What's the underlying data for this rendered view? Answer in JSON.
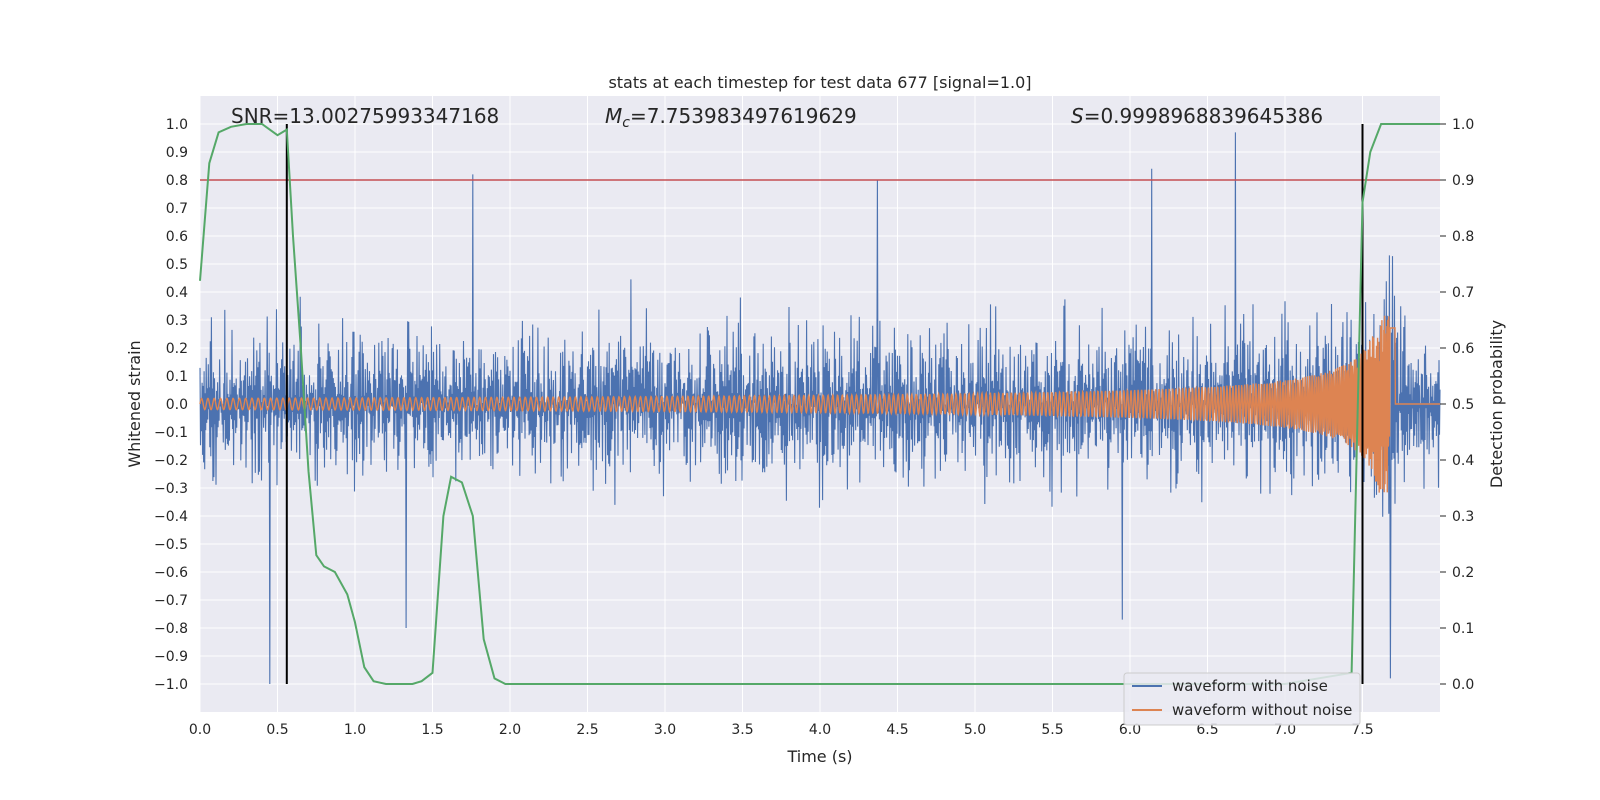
{
  "chart_data": {
    "type": "line",
    "title": "stats at each timestep for test data 677 [signal=1.0]",
    "xlabel": "Time (s)",
    "ylabel": "Whitened strain",
    "y2label": "Detection probability",
    "xlim": [
      0.0,
      8.0
    ],
    "ylim": [
      -1.1,
      1.1
    ],
    "y2lim": [
      -0.05,
      1.05
    ],
    "xticks": [
      "0.0",
      "0.5",
      "1.0",
      "1.5",
      "2.0",
      "2.5",
      "3.0",
      "3.5",
      "4.0",
      "4.5",
      "5.0",
      "5.5",
      "6.0",
      "6.5",
      "7.0",
      "7.5"
    ],
    "yticks": [
      "−1.0",
      "−0.9",
      "−0.8",
      "−0.7",
      "−0.6",
      "−0.5",
      "−0.4",
      "−0.3",
      "−0.2",
      "−0.1",
      "0.0",
      "0.1",
      "0.2",
      "0.3",
      "0.4",
      "0.5",
      "0.6",
      "0.7",
      "0.8",
      "0.9",
      "1.0"
    ],
    "y2ticks": [
      "0.0",
      "0.1",
      "0.2",
      "0.3",
      "0.4",
      "0.5",
      "0.6",
      "0.7",
      "0.8",
      "0.9",
      "1.0"
    ],
    "annotations": {
      "snr": "SNR=13.00275993347168",
      "mc_symbol": "M",
      "mc_sub": "c",
      "mc_value": "=7.753983497619629",
      "s_symbol": "S",
      "s_value": "=0.9998968839645386"
    },
    "threshold": {
      "value": 0.9,
      "axis": "y2",
      "color": "#c44e52"
    },
    "vlines": [
      0.56,
      7.5
    ],
    "colors": {
      "noisy": "#4c72b0",
      "clean": "#dd8452",
      "probability": "#55a868",
      "vline": "#000000",
      "background": "#eaeaf2",
      "grid": "#ffffff"
    },
    "series": [
      {
        "name": "waveform with noise",
        "description": "whitened strain, noise-dominated, amplitude about ±0.4 with spikes up to 1.0",
        "axis": "y",
        "noise_envelope": 0.42,
        "spikes": [
          {
            "x": 0.45,
            "y": -1.0
          },
          {
            "x": 1.76,
            "y": 0.82
          },
          {
            "x": 1.33,
            "y": -0.8
          },
          {
            "x": 4.37,
            "y": 0.8
          },
          {
            "x": 6.14,
            "y": 0.84
          },
          {
            "x": 6.68,
            "y": 0.97
          },
          {
            "x": 7.68,
            "y": -0.98
          },
          {
            "x": 5.95,
            "y": -0.77
          }
        ]
      },
      {
        "name": "waveform without noise",
        "description": "chirp signal, amplitude grows from 0.02 to 0.32 with merger near 7.68 s",
        "axis": "y",
        "amp_start": 0.02,
        "amp_peak": 0.32,
        "merger_time": 7.68,
        "cycles": 300
      },
      {
        "name": "detection probability",
        "axis": "y2",
        "x": [
          0.0,
          0.06,
          0.12,
          0.2,
          0.3,
          0.4,
          0.5,
          0.56,
          0.6,
          0.65,
          0.7,
          0.75,
          0.8,
          0.87,
          0.95,
          1.0,
          1.06,
          1.12,
          1.2,
          1.3,
          1.37,
          1.43,
          1.5,
          1.57,
          1.62,
          1.69,
          1.76,
          1.83,
          1.9,
          1.97,
          2.0,
          7.0,
          7.43,
          7.5,
          7.55,
          7.62,
          7.7,
          8.0
        ],
        "y": [
          0.72,
          0.93,
          0.985,
          0.995,
          1.0,
          1.0,
          0.98,
          0.99,
          0.8,
          0.6,
          0.38,
          0.23,
          0.21,
          0.2,
          0.16,
          0.11,
          0.03,
          0.005,
          0.0,
          0.0,
          0.0,
          0.005,
          0.02,
          0.3,
          0.37,
          0.36,
          0.3,
          0.08,
          0.01,
          0.0,
          0.0,
          0.0,
          0.02,
          0.86,
          0.95,
          1.0,
          1.0,
          1.0
        ]
      }
    ],
    "legend": {
      "placement": "lower-right",
      "entries": [
        {
          "label": "waveform with noise",
          "color": "#4c72b0"
        },
        {
          "label": "waveform without noise",
          "color": "#dd8452"
        }
      ]
    }
  }
}
